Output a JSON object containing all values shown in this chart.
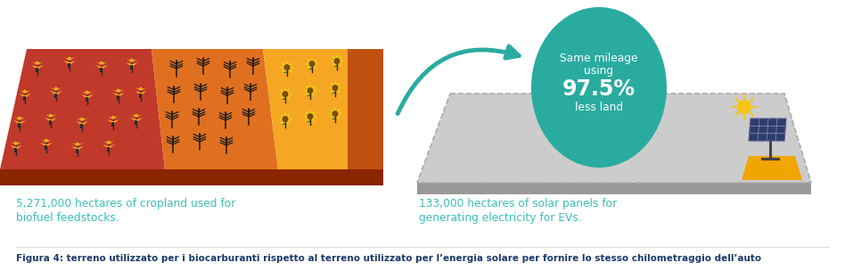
{
  "bg_color": "#ffffff",
  "teal_circle_color": "#2aaba0",
  "teal_text_color": "#3bbfb8",
  "caption_color": "#1a3a6b",
  "circle_label_line1": "Same mileage",
  "circle_label_line2": "using",
  "circle_label_number": "97.5%",
  "circle_label_line3": "less land",
  "left_desc_line1": "5,271,000 hectares of cropland used for",
  "left_desc_line2": "biofuel feedstocks.",
  "right_desc_line1": "133,000 hectares of solar panels for",
  "right_desc_line2": "generating electricity for EVs.",
  "caption": "Figura 4: terreno utilizzato per i biocarburanti rispetto al terreno utilizzato per l’energia solare per fornire lo stesso chilometraggio dell’auto",
  "arrow_color": "#2aaba0",
  "band1_color": "#c0392b",
  "band2_color": "#e07020",
  "band3_color": "#f5a623",
  "base_color": "#8b2500",
  "side_color": "#c05010",
  "solar_gray": "#cccccc",
  "solar_dark": "#999999",
  "solar_yellow": "#f0a500",
  "solar_blue": "#2c3e6b",
  "sun_color": "#f5c518"
}
